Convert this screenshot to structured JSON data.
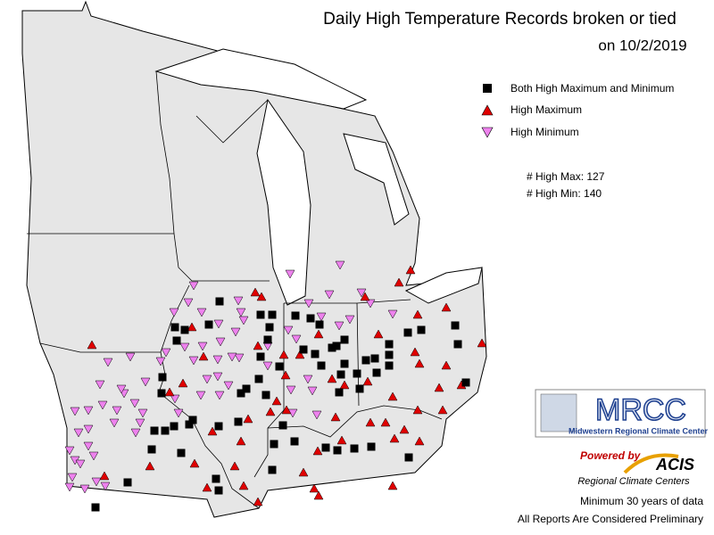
{
  "header": {
    "title": "Daily High Temperature Records broken or tied",
    "subtitle": "on 10/2/2019"
  },
  "legend": {
    "items": [
      {
        "label": "Both High Maximum and Minimum",
        "color": "#000000"
      },
      {
        "label": "High Maximum",
        "color": "#e00000"
      },
      {
        "label": "High Minimum",
        "color": "#ee82ee"
      }
    ]
  },
  "stats": [
    "# High Max: 127",
    "# High Min: 140"
  ],
  "logo": {
    "name": "MRCC",
    "full_name": "Midwestern Regional Climate Center",
    "powered_by": "Powered by",
    "acis": "ACIS",
    "acis_sub": "Regional Climate Centers"
  },
  "footer": [
    "Minimum 30 years of data",
    "All Reports Are Considered Preliminary"
  ]
}
